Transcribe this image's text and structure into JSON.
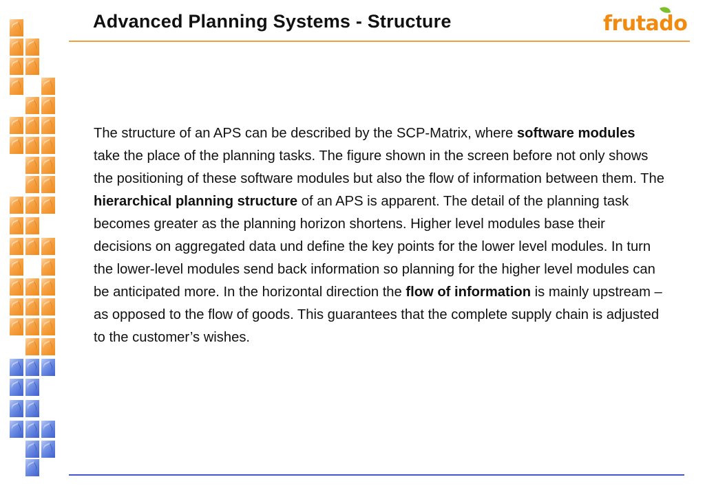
{
  "slide": {
    "title": "Advanced Planning Systems - Structure"
  },
  "logo": {
    "text": "frutado",
    "color": "#f08a10",
    "leaf_color": "#7cbf2a"
  },
  "colors": {
    "accent_orange": "#f0a040",
    "accent_blue": "#4455cc",
    "tile_orange": "#f29436",
    "tile_blue": "#5b7ee0"
  },
  "paragraph": {
    "runs": [
      "The structure of an APS can be described by the SCP-Matrix, where ",
      "software modules",
      " take the place of the planning tasks. The figure shown in the screen before not only shows the positioning of these software modules but also the flow of information between them. The ",
      "hierarchical planning structure",
      " of an APS is apparent. The detail of the planning task becomes greater as the planning horizon shortens. Higher level modules base their decisions on aggregated data und define the key points for the lower level modules. In turn the lower-level modules send back information so planning for the higher level modules can be anticipated more. In the horizontal direction the ",
      "flow of information",
      " is mainly upstream – as opposed to the flow of goods. This guarantees that the complete supply chain is adjusted to the customer’s wishes."
    ]
  }
}
